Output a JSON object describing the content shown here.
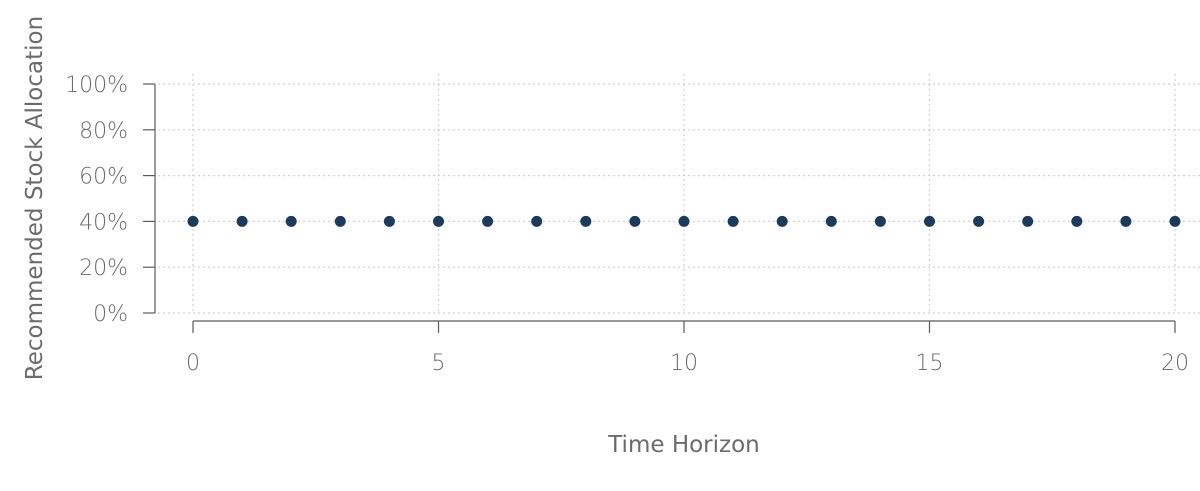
{
  "chart_data": {
    "type": "scatter",
    "title": "",
    "xlabel": "Time Horizon",
    "ylabel": "Recommended Stock Allocation",
    "xlim": [
      0,
      20
    ],
    "ylim": [
      0,
      100
    ],
    "x_ticks": [
      0,
      5,
      10,
      15,
      20
    ],
    "y_ticks": [
      0,
      20,
      40,
      60,
      80,
      100
    ],
    "y_tick_labels": [
      "0%",
      "20%",
      "40%",
      "60%",
      "80%",
      "100%"
    ],
    "grid": true,
    "legend": "none",
    "series": [
      {
        "x": [
          0,
          1,
          2,
          3,
          4,
          5,
          6,
          7,
          8,
          9,
          10,
          11,
          12,
          13,
          14,
          15,
          16,
          17,
          18,
          19,
          20
        ],
        "y": [
          40,
          40,
          40,
          40,
          40,
          40,
          40,
          40,
          40,
          40,
          40,
          40,
          40,
          40,
          40,
          40,
          40,
          40,
          40,
          40,
          40
        ],
        "color": "#1b3a5c"
      }
    ]
  }
}
